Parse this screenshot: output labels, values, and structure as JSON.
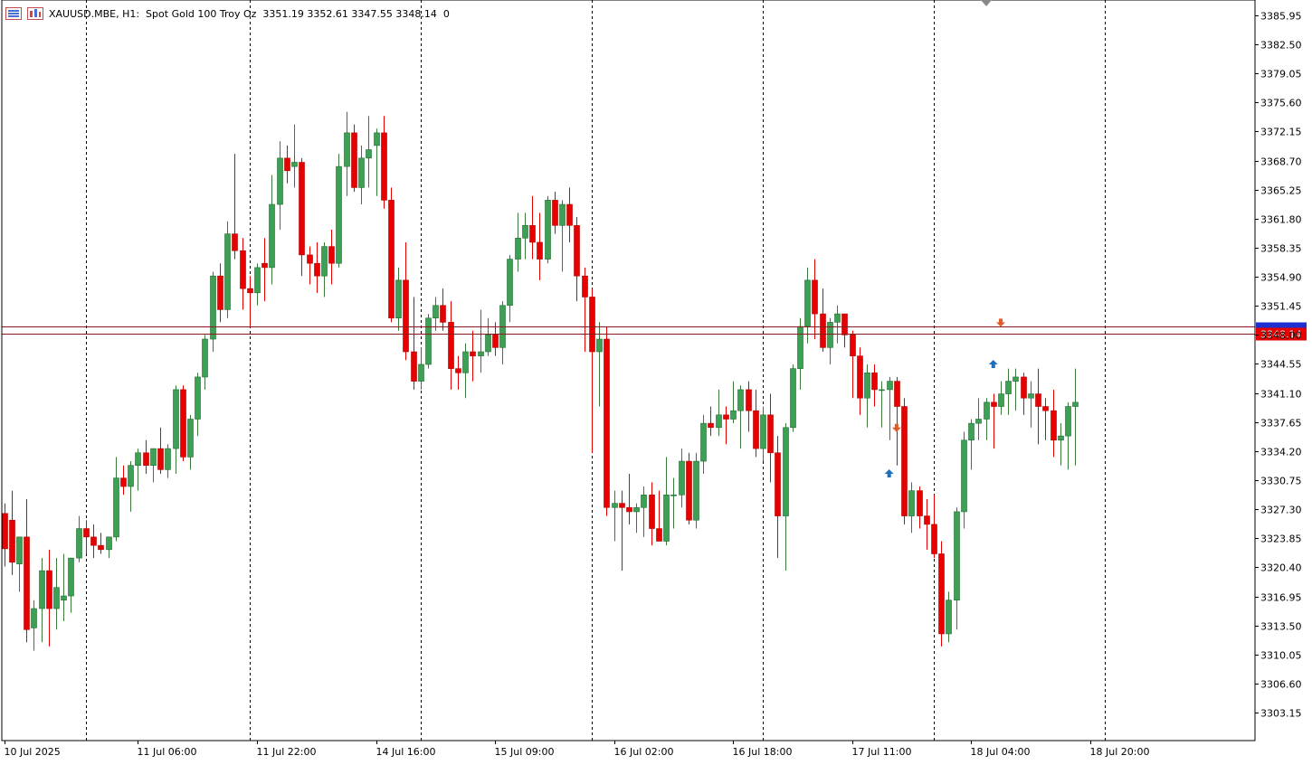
{
  "header": {
    "title": "XAUUSD.MBE, H1:  Spot Gold 100 Troy Oz  3351.19 3352.61 3347.55 3348.14  0"
  },
  "colors": {
    "background": "#ffffff",
    "bull": "#3ea055",
    "bear": "#e60000",
    "wick": "#3a7a3a",
    "axis": "#000000",
    "grid": "#000000",
    "bid_line": "#8b1a1a",
    "price_label_bg": "#e60000",
    "price_label_text": "#ffffff",
    "buy_arrow": "#1f6fbf",
    "sell_arrow": "#e25b2b"
  },
  "chart_data": {
    "type": "candlestick",
    "symbol": "XAUUSD.MBE",
    "timeframe": "H1",
    "ylim": [
      3300.5,
      3388.0
    ],
    "y_ticks": [
      "3385.95",
      "3382.50",
      "3379.05",
      "3375.60",
      "3372.15",
      "3368.70",
      "3365.25",
      "3361.80",
      "3358.35",
      "3354.90",
      "3351.45",
      "3348.00",
      "3344.55",
      "3341.10",
      "3337.65",
      "3334.20",
      "3330.75",
      "3327.30",
      "3323.85",
      "3320.40",
      "3316.95",
      "3313.50",
      "3310.05",
      "3306.60",
      "3303.15"
    ],
    "x_labels": [
      {
        "label": "10 Jul 2025",
        "index": 0
      },
      {
        "label": "11 Jul 06:00",
        "index": 18
      },
      {
        "label": "11 Jul 22:00",
        "index": 34
      },
      {
        "label": "14 Jul 16:00",
        "index": 50
      },
      {
        "label": "15 Jul 09:00",
        "index": 66
      },
      {
        "label": "16 Jul 02:00",
        "index": 82
      },
      {
        "label": "16 Jul 18:00",
        "index": 98
      },
      {
        "label": "17 Jul 11:00",
        "index": 114
      },
      {
        "label": "18 Jul 04:00",
        "index": 130
      },
      {
        "label": "18 Jul 20:00",
        "index": 146
      }
    ],
    "day_separators": [
      11,
      33,
      56,
      79,
      102,
      125,
      148
    ],
    "current_price": 3348.14,
    "current_price_label": "3348.14",
    "ask_price": 3348.6,
    "candles": [
      [
        3326.8,
        3328.0,
        3320.5,
        3322.6
      ],
      [
        3326.0,
        3329.5,
        3319.5,
        3321.0
      ],
      [
        3320.8,
        3323.5,
        3317.5,
        3324.0
      ],
      [
        3324.0,
        3328.5,
        3311.5,
        3313.0
      ],
      [
        3313.2,
        3316.5,
        3310.5,
        3315.5
      ],
      [
        3315.5,
        3321.5,
        3311.5,
        3320.0
      ],
      [
        3320.0,
        3322.5,
        3311.0,
        3315.5
      ],
      [
        3315.5,
        3321.5,
        3313.0,
        3318.0
      ],
      [
        3316.5,
        3322.0,
        3314.0,
        3317.0
      ],
      [
        3317.0,
        3321.5,
        3315.0,
        3321.5
      ],
      [
        3321.5,
        3326.5,
        3321.0,
        3325.0
      ],
      [
        3325.0,
        3326.0,
        3322.0,
        3324.0
      ],
      [
        3324.0,
        3325.5,
        3321.5,
        3323.0
      ],
      [
        3323.0,
        3324.5,
        3322.0,
        3322.5
      ],
      [
        3322.5,
        3324.0,
        3321.5,
        3324.0
      ],
      [
        3324.0,
        3333.5,
        3323.5,
        3331.0
      ],
      [
        3331.0,
        3332.5,
        3329.0,
        3330.0
      ],
      [
        3330.0,
        3333.0,
        3327.0,
        3332.5
      ],
      [
        3332.5,
        3334.5,
        3329.5,
        3334.0
      ],
      [
        3334.0,
        3335.5,
        3331.5,
        3332.5
      ],
      [
        3332.5,
        3334.5,
        3330.5,
        3334.5
      ],
      [
        3334.5,
        3337.0,
        3331.5,
        3332.0
      ],
      [
        3332.0,
        3335.0,
        3331.0,
        3334.5
      ],
      [
        3334.5,
        3342.0,
        3331.5,
        3341.5
      ],
      [
        3341.5,
        3342.0,
        3333.0,
        3333.5
      ],
      [
        3333.5,
        3338.5,
        3332.0,
        3338.0
      ],
      [
        3338.0,
        3343.5,
        3336.0,
        3343.0
      ],
      [
        3343.0,
        3348.0,
        3341.5,
        3347.5
      ],
      [
        3347.5,
        3355.5,
        3346.0,
        3355.0
      ],
      [
        3355.0,
        3356.5,
        3349.5,
        3351.0
      ],
      [
        3351.0,
        3361.5,
        3350.0,
        3360.0
      ],
      [
        3360.0,
        3369.5,
        3357.0,
        3358.0
      ],
      [
        3358.0,
        3359.5,
        3351.0,
        3353.5
      ],
      [
        3353.5,
        3355.0,
        3349.0,
        3353.0
      ],
      [
        3353.0,
        3356.5,
        3351.5,
        3356.0
      ],
      [
        3356.5,
        3359.5,
        3352.0,
        3356.0
      ],
      [
        3356.0,
        3367.0,
        3354.0,
        3363.5
      ],
      [
        3363.5,
        3371.0,
        3360.5,
        3369.0
      ],
      [
        3369.0,
        3370.5,
        3366.0,
        3367.5
      ],
      [
        3368.0,
        3373.0,
        3365.5,
        3368.5
      ],
      [
        3368.5,
        3369.0,
        3355.0,
        3357.5
      ],
      [
        3357.5,
        3358.5,
        3354.0,
        3356.5
      ],
      [
        3356.5,
        3359.0,
        3353.0,
        3355.0
      ],
      [
        3355.0,
        3359.0,
        3352.5,
        3358.5
      ],
      [
        3358.5,
        3360.5,
        3354.0,
        3356.5
      ],
      [
        3356.5,
        3369.5,
        3356.0,
        3368.0
      ],
      [
        3368.0,
        3374.5,
        3364.5,
        3372.0
      ],
      [
        3372.0,
        3373.0,
        3365.0,
        3365.5
      ],
      [
        3365.5,
        3370.5,
        3363.5,
        3369.0
      ],
      [
        3369.0,
        3374.0,
        3365.5,
        3370.0
      ],
      [
        3370.5,
        3372.5,
        3364.5,
        3372.0
      ],
      [
        3372.0,
        3374.0,
        3363.0,
        3364.0
      ],
      [
        3364.0,
        3365.5,
        3349.5,
        3350.0
      ],
      [
        3350.0,
        3356.0,
        3348.5,
        3354.5
      ],
      [
        3354.5,
        3359.0,
        3345.0,
        3346.0
      ],
      [
        3346.0,
        3352.5,
        3341.5,
        3342.5
      ],
      [
        3342.5,
        3346.5,
        3341.5,
        3344.5
      ],
      [
        3344.5,
        3350.5,
        3344.0,
        3350.0
      ],
      [
        3350.0,
        3352.5,
        3348.5,
        3351.5
      ],
      [
        3351.5,
        3353.5,
        3348.5,
        3349.5
      ],
      [
        3349.5,
        3352.0,
        3341.5,
        3344.0
      ],
      [
        3344.0,
        3345.5,
        3341.5,
        3343.5
      ],
      [
        3343.5,
        3347.0,
        3340.5,
        3346.0
      ],
      [
        3346.0,
        3348.5,
        3342.5,
        3345.5
      ],
      [
        3345.5,
        3351.0,
        3343.5,
        3346.0
      ],
      [
        3346.0,
        3350.0,
        3345.5,
        3348.0
      ],
      [
        3348.0,
        3349.5,
        3345.5,
        3346.5
      ],
      [
        3346.5,
        3352.0,
        3344.5,
        3351.5
      ],
      [
        3351.5,
        3357.5,
        3349.5,
        3357.0
      ],
      [
        3357.0,
        3362.5,
        3355.5,
        3359.5
      ],
      [
        3359.5,
        3362.5,
        3357.0,
        3361.0
      ],
      [
        3361.0,
        3364.5,
        3357.0,
        3359.0
      ],
      [
        3359.0,
        3362.5,
        3354.5,
        3357.0
      ],
      [
        3357.0,
        3364.5,
        3356.5,
        3364.0
      ],
      [
        3364.0,
        3365.0,
        3360.0,
        3361.0
      ],
      [
        3361.0,
        3364.0,
        3355.5,
        3363.5
      ],
      [
        3363.5,
        3365.5,
        3359.0,
        3361.0
      ],
      [
        3361.0,
        3362.0,
        3352.0,
        3355.0
      ],
      [
        3355.0,
        3356.0,
        3346.0,
        3352.5
      ],
      [
        3352.5,
        3353.5,
        3334.0,
        3346.0
      ],
      [
        3346.0,
        3349.5,
        3339.5,
        3347.5
      ],
      [
        3347.5,
        3349.0,
        3326.5,
        3327.5
      ],
      [
        3327.5,
        3329.5,
        3323.5,
        3328.0
      ],
      [
        3328.0,
        3329.5,
        3320.0,
        3327.5
      ],
      [
        3327.5,
        3331.5,
        3325.5,
        3327.0
      ],
      [
        3327.0,
        3328.0,
        3324.5,
        3327.5
      ],
      [
        3327.5,
        3330.0,
        3324.0,
        3329.0
      ],
      [
        3329.0,
        3330.5,
        3323.0,
        3325.0
      ],
      [
        3325.0,
        3329.5,
        3323.5,
        3323.5
      ],
      [
        3323.5,
        3333.5,
        3323.0,
        3329.0
      ],
      [
        3329.0,
        3331.0,
        3325.0,
        3329.0
      ],
      [
        3329.0,
        3334.5,
        3327.5,
        3333.0
      ],
      [
        3333.0,
        3334.0,
        3325.5,
        3326.0
      ],
      [
        3326.0,
        3334.0,
        3325.0,
        3333.0
      ],
      [
        3333.0,
        3338.5,
        3331.5,
        3337.5
      ],
      [
        3337.5,
        3339.5,
        3336.0,
        3337.0
      ],
      [
        3337.0,
        3341.5,
        3336.0,
        3338.5
      ],
      [
        3338.5,
        3339.5,
        3335.0,
        3338.0
      ],
      [
        3338.0,
        3342.5,
        3337.5,
        3339.0
      ],
      [
        3339.0,
        3342.0,
        3334.5,
        3341.5
      ],
      [
        3341.5,
        3342.5,
        3336.5,
        3339.0
      ],
      [
        3339.0,
        3341.5,
        3333.5,
        3334.5
      ],
      [
        3334.5,
        3339.5,
        3333.0,
        3338.5
      ],
      [
        3338.5,
        3341.0,
        3330.5,
        3334.0
      ],
      [
        3334.0,
        3336.0,
        3321.5,
        3326.5
      ],
      [
        3326.5,
        3337.5,
        3320.0,
        3337.0
      ],
      [
        3337.0,
        3344.5,
        3336.5,
        3344.0
      ],
      [
        3344.0,
        3350.0,
        3341.5,
        3349.0
      ],
      [
        3349.0,
        3356.0,
        3347.0,
        3354.5
      ],
      [
        3354.5,
        3357.0,
        3347.5,
        3350.5
      ],
      [
        3350.5,
        3353.5,
        3346.0,
        3346.5
      ],
      [
        3346.5,
        3350.0,
        3344.5,
        3349.5
      ],
      [
        3349.5,
        3351.5,
        3347.0,
        3350.5
      ],
      [
        3350.5,
        3350.5,
        3346.5,
        3348.0
      ],
      [
        3348.0,
        3348.5,
        3340.5,
        3345.5
      ],
      [
        3345.5,
        3346.5,
        3338.5,
        3340.5
      ],
      [
        3340.5,
        3344.5,
        3337.0,
        3343.5
      ],
      [
        3343.5,
        3344.5,
        3339.5,
        3341.5
      ],
      [
        3341.5,
        3342.5,
        3337.0,
        3341.5
      ],
      [
        3341.5,
        3343.0,
        3335.5,
        3342.5
      ],
      [
        3342.5,
        3343.0,
        3332.5,
        3339.5
      ],
      [
        3339.5,
        3340.5,
        3325.5,
        3326.5
      ],
      [
        3326.5,
        3330.5,
        3324.5,
        3329.5
      ],
      [
        3329.5,
        3330.0,
        3325.0,
        3326.5
      ],
      [
        3326.5,
        3328.5,
        3322.5,
        3325.5
      ],
      [
        3325.5,
        3329.0,
        3321.5,
        3322.0
      ],
      [
        3322.0,
        3323.5,
        3311.0,
        3312.5
      ],
      [
        3312.5,
        3317.5,
        3311.5,
        3316.5
      ],
      [
        3316.5,
        3327.5,
        3313.0,
        3327.0
      ],
      [
        3327.0,
        3336.5,
        3325.0,
        3335.5
      ],
      [
        3335.5,
        3338.0,
        3332.0,
        3337.5
      ],
      [
        3337.5,
        3340.5,
        3335.5,
        3338.0
      ],
      [
        3338.0,
        3340.5,
        3335.5,
        3340.0
      ],
      [
        3340.0,
        3341.0,
        3334.5,
        3339.5
      ],
      [
        3339.5,
        3342.5,
        3338.5,
        3341.0
      ],
      [
        3341.0,
        3344.0,
        3338.5,
        3342.5
      ],
      [
        3342.5,
        3344.0,
        3339.0,
        3343.0
      ],
      [
        3343.0,
        3343.5,
        3338.5,
        3340.5
      ],
      [
        3340.5,
        3342.5,
        3337.0,
        3341.0
      ],
      [
        3341.0,
        3344.0,
        3335.0,
        3339.5
      ],
      [
        3339.5,
        3340.5,
        3335.5,
        3339.0
      ],
      [
        3339.0,
        3341.5,
        3333.5,
        3335.5
      ],
      [
        3335.5,
        3337.5,
        3332.5,
        3336.0
      ],
      [
        3336.0,
        3340.0,
        3332.0,
        3339.5
      ],
      [
        3339.5,
        3344.0,
        3332.5,
        3340.0
      ]
    ],
    "signal_arrows": [
      {
        "index": 119,
        "price": 3331.5,
        "dir": "up"
      },
      {
        "index": 120,
        "price": 3337.0,
        "dir": "down"
      },
      {
        "index": 133,
        "price": 3344.5,
        "dir": "up"
      },
      {
        "index": 134,
        "price": 3349.5,
        "dir": "down"
      }
    ]
  }
}
